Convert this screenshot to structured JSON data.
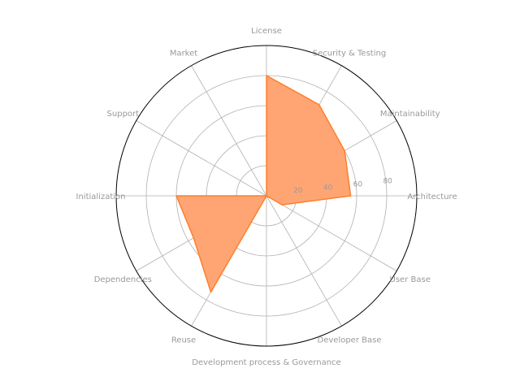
{
  "chart_data": {
    "type": "radar",
    "categories": [
      "License",
      "Security & Testing",
      "Maintainability",
      "Architecture",
      "User Base",
      "Developer Base",
      "Development process & Governance",
      "Reuse",
      "Dependencies",
      "Initialization",
      "Support",
      "Market"
    ],
    "series": [
      {
        "values": [
          80,
          70,
          60,
          56,
          12,
          0,
          0,
          74,
          56,
          60,
          0,
          0
        ]
      }
    ],
    "rlim": [
      0,
      100
    ],
    "rticks": [
      20,
      40,
      60,
      80
    ],
    "grid": true,
    "colors": {
      "fill": "#ffa574",
      "line": "#ff7f2a",
      "grid": "#b0b0b0",
      "outer": "#000000",
      "text": "#999999"
    }
  }
}
